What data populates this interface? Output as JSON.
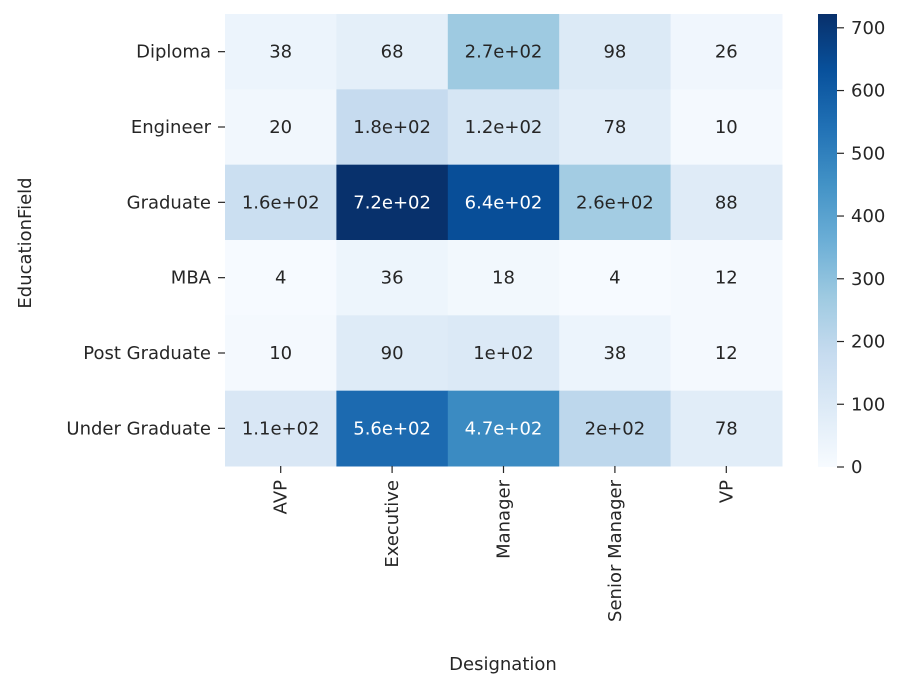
{
  "chart_data": {
    "type": "heatmap",
    "title": "",
    "xlabel": "Designation",
    "ylabel": "EducationField",
    "x_categories": [
      "AVP",
      "Executive",
      "Manager",
      "Senior Manager",
      "VP"
    ],
    "y_categories": [
      "Diploma",
      "Engineer",
      "Graduate",
      "MBA",
      "Post Graduate",
      "Under Graduate"
    ],
    "values": [
      [
        38,
        68,
        270,
        98,
        26
      ],
      [
        20,
        180,
        120,
        78,
        10
      ],
      [
        160,
        720,
        640,
        260,
        88
      ],
      [
        4,
        36,
        18,
        4,
        12
      ],
      [
        10,
        90,
        100,
        38,
        12
      ],
      [
        110,
        560,
        470,
        200,
        78
      ]
    ],
    "annotations": [
      [
        "38",
        "68",
        "2.7e+02",
        "98",
        "26"
      ],
      [
        "20",
        "1.8e+02",
        "1.2e+02",
        "78",
        "10"
      ],
      [
        "1.6e+02",
        "7.2e+02",
        "6.4e+02",
        "2.6e+02",
        "88"
      ],
      [
        "4",
        "36",
        "18",
        "4",
        "12"
      ],
      [
        "10",
        "90",
        "1e+02",
        "38",
        "12"
      ],
      [
        "1.1e+02",
        "5.6e+02",
        "4.7e+02",
        "2e+02",
        "78"
      ]
    ],
    "colormap": "Blues",
    "colorbar": {
      "range": [
        0,
        722
      ],
      "ticks": [
        0,
        100,
        200,
        300,
        400,
        500,
        600,
        700
      ],
      "tick_labels": [
        "0",
        "100",
        "200",
        "300",
        "400",
        "500",
        "600",
        "700"
      ]
    }
  }
}
